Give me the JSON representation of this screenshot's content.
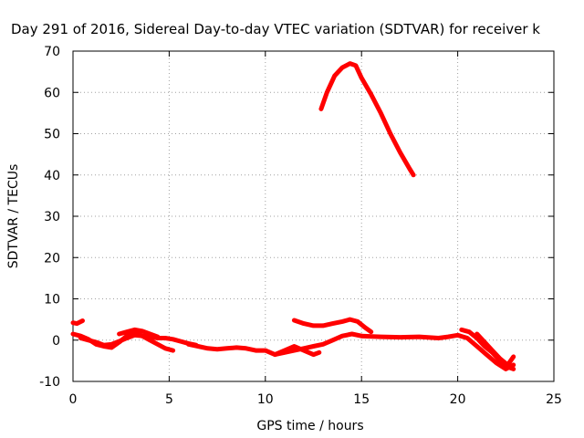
{
  "chart_data": {
    "type": "line",
    "title": "Day 291 of 2016, Sidereal Day-to-day VTEC variation (SDTVAR) for receiver k",
    "xlabel": "GPS time / hours",
    "ylabel": "SDTVAR / TECUs",
    "xlim": [
      0,
      25
    ],
    "ylim": [
      -10,
      70
    ],
    "xticks": [
      "0",
      "5",
      "10",
      "15",
      "20",
      "25"
    ],
    "yticks": [
      "-10",
      "0",
      "10",
      "20",
      "30",
      "40",
      "50",
      "60",
      "70"
    ],
    "grid": true,
    "legend": "none",
    "color": "#ff0000",
    "series": [
      {
        "x": [
          0.0,
          0.2,
          0.5
        ],
        "y": [
          4.2,
          4.0,
          4.7
        ]
      },
      {
        "x": [
          0.0,
          0.4,
          0.8,
          1.2,
          1.6,
          2.0,
          2.4,
          2.8,
          3.2,
          3.6,
          4.0,
          4.4,
          4.8,
          5.2
        ],
        "y": [
          1.5,
          1.0,
          0.2,
          -1.0,
          -1.5,
          -1.8,
          -0.5,
          1.0,
          2.0,
          1.0,
          0.0,
          -1.0,
          -2.0,
          -2.5
        ]
      },
      {
        "x": [
          0.4,
          0.8,
          1.2,
          1.6,
          2.0,
          2.4,
          2.8,
          3.2,
          3.6,
          4.0,
          4.4,
          4.8,
          5.2,
          5.6,
          6.0,
          6.4
        ],
        "y": [
          0.5,
          0.0,
          -0.5,
          -1.2,
          -1.0,
          -0.3,
          0.5,
          1.2,
          1.0,
          0.8,
          0.5,
          0.5,
          0.2,
          -0.3,
          -0.8,
          -1.2
        ]
      },
      {
        "x": [
          2.4,
          2.8,
          3.2,
          3.6,
          4.0,
          4.4
        ],
        "y": [
          1.5,
          2.0,
          2.5,
          2.2,
          1.5,
          0.8
        ]
      },
      {
        "x": [
          6.0,
          6.5,
          7.0,
          7.5,
          8.0,
          8.5,
          9.0,
          9.5,
          10.0,
          10.5,
          11.0,
          11.5,
          12.0,
          12.5,
          13.0,
          13.5,
          14.0,
          14.5,
          15.0
        ],
        "y": [
          -1.0,
          -1.5,
          -2.0,
          -2.2,
          -2.0,
          -1.8,
          -2.0,
          -2.5,
          -2.5,
          -3.5,
          -3.0,
          -2.5,
          -2.0,
          -1.5,
          -1.0,
          0.0,
          1.0,
          1.5,
          1.0
        ]
      },
      {
        "x": [
          10.5,
          11.0,
          11.5,
          12.0,
          12.5,
          12.8
        ],
        "y": [
          -3.5,
          -2.5,
          -1.5,
          -2.5,
          -3.5,
          -3.0
        ]
      },
      {
        "x": [
          11.5,
          12.0,
          12.5,
          13.0,
          13.5,
          14.0,
          14.4,
          14.8,
          15.2,
          15.5
        ],
        "y": [
          4.8,
          4.0,
          3.5,
          3.5,
          4.0,
          4.5,
          5.0,
          4.5,
          3.0,
          2.0
        ]
      },
      {
        "x": [
          15.0,
          16.0,
          17.0,
          18.0,
          19.0,
          19.5,
          20.0,
          20.5,
          21.0,
          21.5,
          22.0,
          22.5,
          22.9
        ],
        "y": [
          1.0,
          0.8,
          0.7,
          0.8,
          0.5,
          0.8,
          1.2,
          0.5,
          -1.5,
          -3.5,
          -5.5,
          -7.0,
          -6.0
        ]
      },
      {
        "x": [
          20.2,
          20.6,
          21.0,
          21.4,
          21.8,
          22.2,
          22.6,
          22.9
        ],
        "y": [
          2.5,
          2.0,
          0.5,
          -1.5,
          -3.0,
          -5.0,
          -6.5,
          -7.0
        ]
      },
      {
        "x": [
          21.0,
          21.4,
          21.8,
          22.2,
          22.6,
          22.9
        ],
        "y": [
          1.5,
          -0.5,
          -2.5,
          -4.5,
          -6.0,
          -4.0
        ]
      },
      {
        "x": [
          12.9,
          13.2,
          13.6,
          14.0,
          14.4,
          14.7,
          15.0,
          15.5,
          16.0,
          16.5,
          17.0,
          17.5,
          17.7
        ],
        "y": [
          56.0,
          60.0,
          64.0,
          66.0,
          67.0,
          66.5,
          63.5,
          59.5,
          55.0,
          50.0,
          45.5,
          41.5,
          40.0
        ]
      }
    ]
  }
}
